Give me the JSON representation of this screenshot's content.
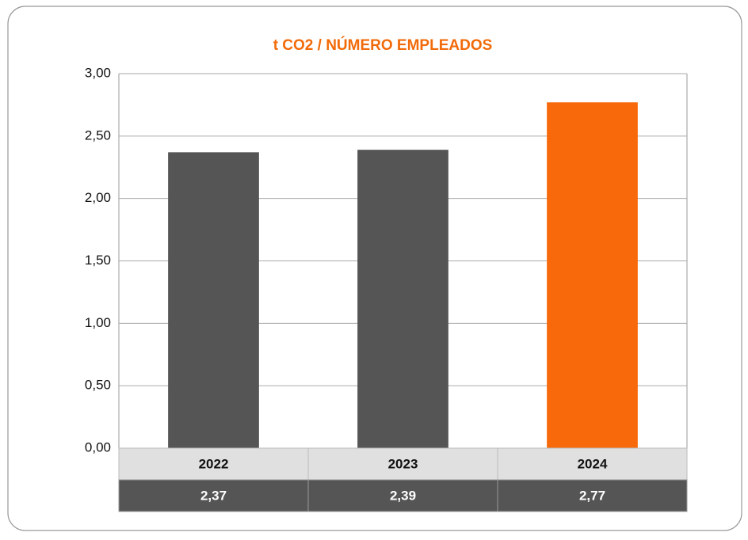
{
  "chart_data": {
    "type": "bar",
    "title": "t CO2 / NÚMERO EMPLEADOS",
    "categories": [
      "2022",
      "2023",
      "2024"
    ],
    "values": [
      2.37,
      2.39,
      2.77
    ],
    "value_labels": [
      "2,37",
      "2,39",
      "2,77"
    ],
    "colors": [
      "#555555",
      "#555555",
      "#f7690a"
    ],
    "ylim": [
      0,
      3
    ],
    "yticks": [
      {
        "value": 0,
        "label": "0,00"
      },
      {
        "value": 0.5,
        "label": "0,50"
      },
      {
        "value": 1,
        "label": "1,00"
      },
      {
        "value": 1.5,
        "label": "1,50"
      },
      {
        "value": 2,
        "label": "2,00"
      },
      {
        "value": 2.5,
        "label": "2,50"
      },
      {
        "value": 3,
        "label": "3,00"
      }
    ],
    "grid": true
  }
}
